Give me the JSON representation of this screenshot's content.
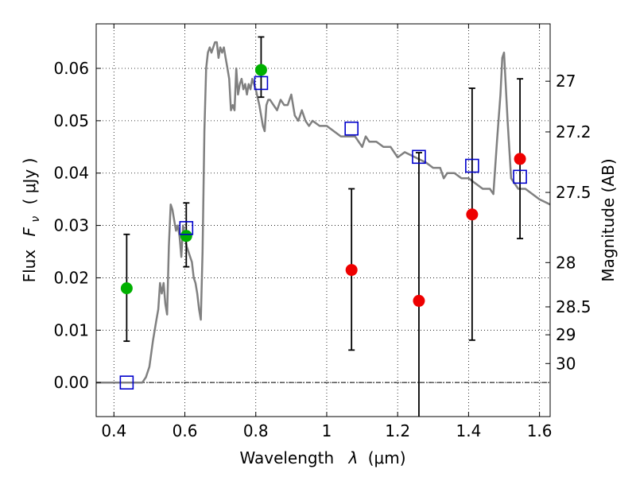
{
  "chart_data": {
    "type": "scatter",
    "xlabel_prefix": "Wavelength",
    "xlabel_symbol": "λ",
    "xlabel_unit": "(μm)",
    "ylabel_prefix": "Flux",
    "ylabel_symbol": "F",
    "ylabel_sub": "ν",
    "ylabel_unit": "( μJy )",
    "ylabel_right": "Magnitude (AB)",
    "xlim": [
      0.35,
      1.63
    ],
    "ylim": [
      -0.0065,
      0.0685
    ],
    "grid": true,
    "xticks": [
      0.4,
      0.6,
      0.8,
      1.0,
      1.2,
      1.4,
      1.6
    ],
    "xtick_labels": [
      "0.4",
      "0.6",
      "0.8",
      "1",
      "1.2",
      "1.4",
      "1.6"
    ],
    "yticks": [
      0.0,
      0.01,
      0.02,
      0.03,
      0.04,
      0.05,
      0.06
    ],
    "ytick_labels": [
      "0.00",
      "0.01",
      "0.02",
      "0.03",
      "0.04",
      "0.05",
      "0.06"
    ],
    "right_ticks": [
      {
        "label": "27",
        "mag": 27.0
      },
      {
        "label": "27.2",
        "mag": 27.2
      },
      {
        "label": "27.5",
        "mag": 27.5
      },
      {
        "label": "28",
        "mag": 28.0
      },
      {
        "label": "28.5",
        "mag": 28.5
      },
      {
        "label": "29",
        "mag": 29.0
      },
      {
        "label": "30",
        "mag": 30.0
      }
    ],
    "colors": {
      "template": "#808080",
      "green": "#00b000",
      "red": "#ee0000",
      "model": "#0000cc",
      "errorbar": "#000000"
    },
    "series": [
      {
        "kind": "line",
        "x": [
          0.35,
          0.48,
          0.49,
          0.5,
          0.51,
          0.52,
          0.525,
          0.53,
          0.535,
          0.54,
          0.545,
          0.55,
          0.555,
          0.56,
          0.565,
          0.57,
          0.575,
          0.58,
          0.585,
          0.59,
          0.595,
          0.6,
          0.605,
          0.61,
          0.615,
          0.62,
          0.625,
          0.63,
          0.635,
          0.64,
          0.645,
          0.65,
          0.655,
          0.66,
          0.665,
          0.67,
          0.675,
          0.68,
          0.685,
          0.69,
          0.695,
          0.7,
          0.705,
          0.71,
          0.715,
          0.72,
          0.725,
          0.73,
          0.735,
          0.74,
          0.745,
          0.75,
          0.755,
          0.76,
          0.765,
          0.77,
          0.775,
          0.78,
          0.785,
          0.79,
          0.8,
          0.81,
          0.82,
          0.825,
          0.83,
          0.835,
          0.84,
          0.85,
          0.86,
          0.87,
          0.88,
          0.89,
          0.9,
          0.91,
          0.92,
          0.93,
          0.94,
          0.95,
          0.96,
          0.98,
          1.0,
          1.02,
          1.04,
          1.06,
          1.08,
          1.1,
          1.11,
          1.12,
          1.14,
          1.16,
          1.18,
          1.2,
          1.22,
          1.25,
          1.28,
          1.3,
          1.32,
          1.33,
          1.34,
          1.36,
          1.38,
          1.4,
          1.42,
          1.44,
          1.46,
          1.47,
          1.48,
          1.49,
          1.495,
          1.5,
          1.51,
          1.52,
          1.54,
          1.56,
          1.58,
          1.6,
          1.63
        ],
        "y": [
          0.0,
          0.0,
          0.001,
          0.003,
          0.008,
          0.012,
          0.014,
          0.019,
          0.017,
          0.019,
          0.015,
          0.013,
          0.026,
          0.034,
          0.033,
          0.031,
          0.029,
          0.03,
          0.028,
          0.024,
          0.03,
          0.028,
          0.026,
          0.025,
          0.024,
          0.023,
          0.02,
          0.019,
          0.017,
          0.014,
          0.012,
          0.025,
          0.048,
          0.06,
          0.063,
          0.064,
          0.063,
          0.064,
          0.065,
          0.065,
          0.062,
          0.064,
          0.063,
          0.064,
          0.062,
          0.06,
          0.058,
          0.052,
          0.053,
          0.052,
          0.06,
          0.055,
          0.057,
          0.058,
          0.056,
          0.057,
          0.055,
          0.057,
          0.056,
          0.058,
          0.056,
          0.053,
          0.049,
          0.048,
          0.053,
          0.054,
          0.054,
          0.053,
          0.052,
          0.054,
          0.053,
          0.053,
          0.055,
          0.051,
          0.05,
          0.052,
          0.05,
          0.049,
          0.05,
          0.049,
          0.049,
          0.048,
          0.047,
          0.047,
          0.047,
          0.045,
          0.047,
          0.046,
          0.046,
          0.045,
          0.045,
          0.043,
          0.044,
          0.043,
          0.042,
          0.041,
          0.041,
          0.039,
          0.04,
          0.04,
          0.039,
          0.039,
          0.038,
          0.037,
          0.037,
          0.036,
          0.046,
          0.055,
          0.062,
          0.063,
          0.05,
          0.039,
          0.037,
          0.037,
          0.036,
          0.035,
          0.034
        ]
      },
      {
        "kind": "points",
        "color": "green",
        "marker": "circle",
        "x": [
          0.436,
          0.604,
          0.815
        ],
        "y": [
          0.018,
          0.028,
          0.0597
        ],
        "err_low": [
          0.0101,
          0.0059,
          0.0052
        ],
        "err_high": [
          0.0103,
          0.0063,
          0.0063
        ]
      },
      {
        "kind": "points",
        "color": "red",
        "marker": "circle",
        "x": [
          1.07,
          1.26,
          1.41,
          1.545
        ],
        "y": [
          0.0215,
          0.0156,
          0.0321,
          0.0427
        ],
        "err_low": [
          0.0153,
          0.0221,
          0.024,
          0.0152
        ],
        "err_high": [
          0.0155,
          0.0283,
          0.0241,
          0.0153
        ]
      },
      {
        "kind": "points",
        "color": "model",
        "marker": "open-square",
        "x": [
          0.436,
          0.604,
          0.815,
          1.07,
          1.26,
          1.41,
          1.545
        ],
        "y": [
          0.0,
          0.0295,
          0.0572,
          0.0485,
          0.0431,
          0.0414,
          0.0393
        ]
      }
    ]
  }
}
